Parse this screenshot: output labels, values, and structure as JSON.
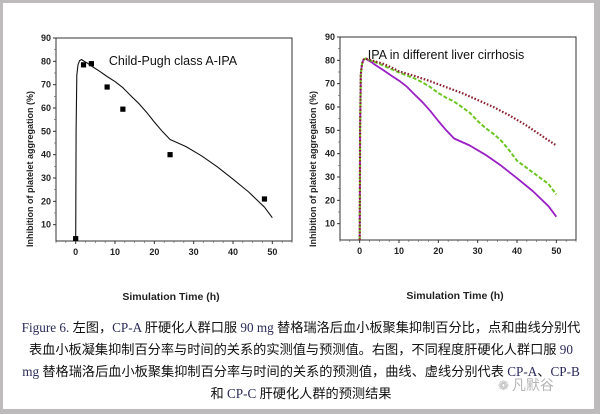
{
  "figure": {
    "caption_parts": [
      {
        "text": "Figure 6. ",
        "en": true
      },
      {
        "text": "左图，",
        "en": false
      },
      {
        "text": "CP-A ",
        "en": true
      },
      {
        "text": "肝硬化人群口服 ",
        "en": false
      },
      {
        "text": "90 mg ",
        "en": true
      },
      {
        "text": "替格瑞洛后血小板聚集抑制百分比，点和曲线分别代表血小板凝集抑制百分率与时间的关系的实测值与预测值。右图，不同程度肝硬化人群口服 ",
        "en": false
      },
      {
        "text": "90 mg ",
        "en": true
      },
      {
        "text": "替格瑞洛后血小板聚集抑制百分率与时间的关系的预测值，曲线、虚线分别代表 ",
        "en": false
      },
      {
        "text": "CP-A",
        "en": true
      },
      {
        "text": "、",
        "en": false
      },
      {
        "text": "CP-B ",
        "en": true
      },
      {
        "text": "和 ",
        "en": false
      },
      {
        "text": "CP-C ",
        "en": true
      },
      {
        "text": "肝硬化人群的预测结果",
        "en": false
      }
    ],
    "watermark": "凡默谷",
    "watermark_icon": "wechat-icon"
  },
  "chart_data": [
    {
      "type": "scatter+line",
      "title": "Child-Pugh class A-IPA",
      "xlabel": "Simulation Time (h)",
      "ylabel": "Inhibition of platelet aggregation (%)",
      "xlim": [
        -5,
        55
      ],
      "ylim": [
        3,
        90
      ],
      "xticks": [
        0,
        10,
        20,
        30,
        40,
        50
      ],
      "yticks": [
        10,
        20,
        30,
        40,
        50,
        60,
        70,
        80,
        90
      ],
      "grid": false,
      "series": [
        {
          "name": "Observed",
          "kind": "scatter",
          "marker": "square",
          "color": "#000000",
          "x": [
            0,
            2,
            4,
            8,
            12,
            24,
            48
          ],
          "y": [
            4,
            78.5,
            79,
            69,
            59.5,
            40,
            21
          ]
        },
        {
          "name": "Predicted",
          "kind": "line",
          "color": "#111111",
          "x": [
            0,
            0.1,
            0.3,
            0.6,
            1.0,
            1.5,
            2.0,
            3,
            4,
            6,
            8,
            10,
            12,
            14,
            16,
            18,
            20,
            22,
            24,
            28,
            32,
            36,
            40,
            44,
            48,
            50
          ],
          "y": [
            3,
            50,
            74,
            78.5,
            80.3,
            80.8,
            80.2,
            79.2,
            78,
            75.8,
            73.5,
            71.3,
            68.7,
            65.3,
            62,
            58.2,
            54,
            50,
            46.5,
            43.5,
            39.5,
            34.8,
            29.5,
            24,
            17.5,
            13
          ]
        }
      ]
    },
    {
      "type": "line",
      "title": "IPA in different liver cirrhosis",
      "xlabel": "Simulation Time (h)",
      "ylabel": "Inhibition of platelet aggregation (%)",
      "xlim": [
        -5,
        55
      ],
      "ylim": [
        3,
        90
      ],
      "xticks": [
        0,
        10,
        20,
        30,
        40,
        50
      ],
      "yticks": [
        10,
        20,
        30,
        40,
        50,
        60,
        70,
        80,
        90
      ],
      "grid": false,
      "series": [
        {
          "name": "CP-A",
          "style": "solid",
          "color": "#9a1fc4",
          "x": [
            0,
            0.1,
            0.3,
            0.6,
            1.0,
            1.5,
            2.0,
            3,
            4,
            6,
            8,
            10,
            12,
            14,
            16,
            18,
            20,
            22,
            24,
            28,
            32,
            36,
            40,
            44,
            48,
            50
          ],
          "y": [
            3,
            50,
            74,
            78.5,
            80.3,
            80.8,
            80.2,
            79.2,
            78,
            75.8,
            73.5,
            71.3,
            68.7,
            65.3,
            62,
            58.2,
            54,
            50,
            46.5,
            43.5,
            39.5,
            34.8,
            29.5,
            24,
            17.5,
            13
          ]
        },
        {
          "name": "CP-B",
          "style": "dashed",
          "color": "#6cc524",
          "x": [
            0,
            0.1,
            0.3,
            0.6,
            1.0,
            1.5,
            2.0,
            4,
            6,
            8,
            10,
            12,
            14,
            16,
            18,
            20,
            22,
            24,
            26,
            28,
            30,
            32,
            34,
            36,
            38,
            40,
            44,
            48,
            50
          ],
          "y": [
            3,
            50,
            74,
            78.5,
            80.3,
            80.8,
            80.4,
            79.2,
            77.8,
            76.3,
            74.8,
            73.5,
            72.2,
            70.5,
            68.5,
            66,
            64,
            62.3,
            60,
            57.5,
            54,
            51,
            48.5,
            45.5,
            41.5,
            37,
            32,
            27,
            22.5
          ]
        },
        {
          "name": "CP-C",
          "style": "dotted",
          "color": "#8b2231",
          "x": [
            0,
            0.1,
            0.3,
            0.6,
            1.0,
            1.5,
            2.0,
            4,
            6,
            8,
            10,
            14,
            18,
            22,
            26,
            30,
            34,
            38,
            42,
            46,
            50
          ],
          "y": [
            3,
            50,
            74,
            78.5,
            80.3,
            80.8,
            80.5,
            79.5,
            78.5,
            77,
            75.3,
            73.3,
            71,
            68.5,
            66,
            63,
            60,
            56.5,
            52.5,
            48,
            43.5
          ]
        }
      ]
    }
  ]
}
